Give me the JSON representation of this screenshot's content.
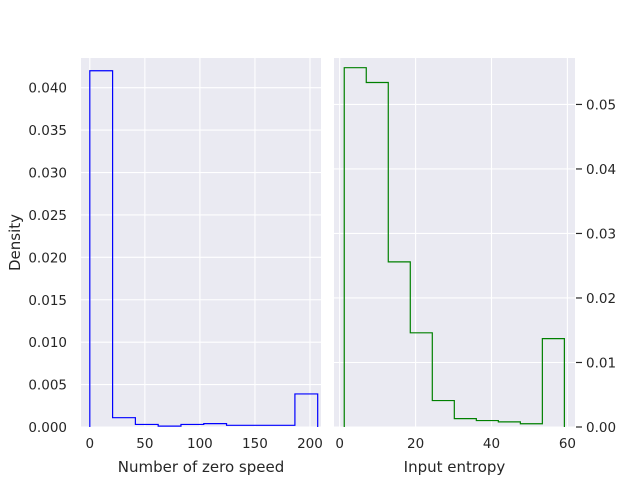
{
  "chart_data": [
    {
      "type": "histogram",
      "panel": "left",
      "style": "step",
      "color": "#0000ff",
      "xlabel": "Number of zero speed",
      "ylabel": "Density",
      "xlim": [
        -8,
        210
      ],
      "ylim": [
        0,
        0.0435
      ],
      "xticks": [
        0,
        50,
        100,
        150,
        200
      ],
      "yticks": [
        0.0,
        0.005,
        0.01,
        0.015,
        0.02,
        0.025,
        0.03,
        0.035,
        0.04
      ],
      "ytick_labels": [
        "0.000",
        "0.005",
        "0.010",
        "0.015",
        "0.020",
        "0.025",
        "0.030",
        "0.035",
        "0.040"
      ],
      "xtick_labels": [
        "0",
        "50",
        "100",
        "150",
        "200"
      ],
      "y_axis_side": "left",
      "bin_edges": [
        0,
        20.7,
        41.4,
        62.1,
        82.8,
        103.5,
        124.2,
        144.9,
        165.6,
        186.3,
        207
      ],
      "values": [
        0.042,
        0.0011,
        0.0003,
        0.0001,
        0.0003,
        0.0004,
        0.0002,
        0.0002,
        0.0002,
        0.0039
      ]
    },
    {
      "type": "histogram",
      "panel": "right",
      "style": "step",
      "color": "#008000",
      "xlabel": "Input entropy",
      "ylabel": "",
      "xlim": [
        -1.5,
        62
      ],
      "ylim": [
        0,
        0.0572
      ],
      "xticks": [
        0,
        20,
        40,
        60
      ],
      "xtick_labels": [
        "0",
        "20",
        "40",
        "60"
      ],
      "yticks": [
        0.0,
        0.01,
        0.02,
        0.03,
        0.04,
        0.05
      ],
      "ytick_labels": [
        "0.00",
        "0.01",
        "0.02",
        "0.03",
        "0.04",
        "0.05"
      ],
      "y_axis_side": "right",
      "bin_edges": [
        1.2,
        7.0,
        12.8,
        18.6,
        24.4,
        30.2,
        36.0,
        41.8,
        47.6,
        53.4,
        59.2
      ],
      "values": [
        0.0557,
        0.0534,
        0.0256,
        0.0146,
        0.0041,
        0.0013,
        0.001,
        0.0008,
        0.0005,
        0.0137
      ]
    }
  ]
}
